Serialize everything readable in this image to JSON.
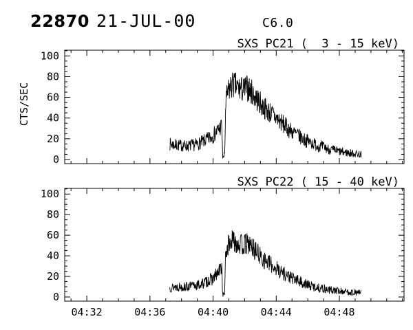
{
  "header": {
    "sequence_number": "22870",
    "date": "21-JUL-00",
    "flare_class": "C6.0"
  },
  "colors": {
    "foreground": "#000000",
    "background": "#ffffff"
  },
  "chart_data": [
    {
      "type": "line",
      "title": "SXS PC21 (  3 - 15 keV)",
      "ylabel": "CTS/SEC",
      "show_x_tick_labels": false,
      "xlim_minutes_after_0400": [
        30.6,
        52.1
      ],
      "ylim": [
        -4,
        105.5
      ],
      "yticks_major": [
        0,
        20,
        40,
        60,
        80,
        100
      ],
      "ytick_minor_step": 5,
      "xticks_major": [
        {
          "minutes": 32,
          "label": "04:32"
        },
        {
          "minutes": 36,
          "label": "04:36"
        },
        {
          "minutes": 40,
          "label": "04:40"
        },
        {
          "minutes": 44,
          "label": "04:44"
        },
        {
          "minutes": 48,
          "label": "04:48"
        }
      ],
      "xtick_minor_step_minutes": 1,
      "grid": false,
      "legend": "none",
      "series": {
        "name": "SXS PC21 3-15 keV counts",
        "units": "CTS/SEC",
        "noise_amplitude": 1.6,
        "seed": 7,
        "sample_step_minutes": 0.02,
        "keypoints_minutes_vs_cts": [
          [
            37.25,
            15
          ],
          [
            37.6,
            14
          ],
          [
            38.0,
            13.5
          ],
          [
            38.4,
            13
          ],
          [
            38.8,
            14
          ],
          [
            39.2,
            16
          ],
          [
            39.6,
            19
          ],
          [
            40.0,
            23
          ],
          [
            40.3,
            28
          ],
          [
            40.5,
            32
          ],
          [
            40.56,
            33
          ],
          [
            40.6,
            3
          ],
          [
            40.68,
            2
          ],
          [
            40.74,
            6
          ],
          [
            40.8,
            55
          ],
          [
            40.95,
            65
          ],
          [
            41.1,
            70
          ],
          [
            41.3,
            72
          ],
          [
            41.6,
            69
          ],
          [
            41.9,
            67
          ],
          [
            42.2,
            69
          ],
          [
            42.5,
            64
          ],
          [
            42.8,
            58
          ],
          [
            43.1,
            52
          ],
          [
            43.4,
            48
          ],
          [
            43.7,
            44
          ],
          [
            44.0,
            40
          ],
          [
            44.3,
            36
          ],
          [
            44.6,
            32
          ],
          [
            44.9,
            28
          ],
          [
            45.2,
            25
          ],
          [
            45.5,
            22
          ],
          [
            45.8,
            19
          ],
          [
            46.1,
            17
          ],
          [
            46.4,
            15
          ],
          [
            46.7,
            13
          ],
          [
            47.0,
            12
          ],
          [
            47.3,
            10
          ],
          [
            47.6,
            9
          ],
          [
            47.9,
            8
          ],
          [
            48.2,
            7
          ],
          [
            48.5,
            6.5
          ],
          [
            48.8,
            6
          ],
          [
            49.1,
            5.5
          ],
          [
            49.4,
            5
          ]
        ]
      }
    },
    {
      "type": "line",
      "title": "SXS PC22 ( 15 - 40 keV)",
      "ylabel": null,
      "show_x_tick_labels": true,
      "xlim_minutes_after_0400": [
        30.6,
        52.1
      ],
      "ylim": [
        -4,
        105.5
      ],
      "yticks_major": [
        0,
        20,
        40,
        60,
        80,
        100
      ],
      "ytick_minor_step": 5,
      "xticks_major": [
        {
          "minutes": 32,
          "label": "04:32"
        },
        {
          "minutes": 36,
          "label": "04:36"
        },
        {
          "minutes": 40,
          "label": "04:40"
        },
        {
          "minutes": 44,
          "label": "04:44"
        },
        {
          "minutes": 48,
          "label": "04:48"
        }
      ],
      "xtick_minor_step_minutes": 1,
      "grid": false,
      "legend": "none",
      "series": {
        "name": "SXS PC22 15-40 keV counts",
        "units": "CTS/SEC",
        "noise_amplitude": 1.5,
        "seed": 13,
        "sample_step_minutes": 0.02,
        "keypoints_minutes_vs_cts": [
          [
            37.25,
            9
          ],
          [
            37.6,
            10
          ],
          [
            38.0,
            10
          ],
          [
            38.4,
            10
          ],
          [
            38.8,
            11
          ],
          [
            39.2,
            12
          ],
          [
            39.6,
            15
          ],
          [
            40.0,
            18
          ],
          [
            40.3,
            23
          ],
          [
            40.5,
            28
          ],
          [
            40.56,
            30
          ],
          [
            40.6,
            3
          ],
          [
            40.68,
            2
          ],
          [
            40.74,
            5
          ],
          [
            40.8,
            42
          ],
          [
            40.95,
            50
          ],
          [
            41.1,
            53
          ],
          [
            41.3,
            55
          ],
          [
            41.6,
            52
          ],
          [
            41.9,
            50
          ],
          [
            42.2,
            52
          ],
          [
            42.5,
            48
          ],
          [
            42.8,
            43
          ],
          [
            43.1,
            38
          ],
          [
            43.4,
            34
          ],
          [
            43.7,
            31
          ],
          [
            44.0,
            28
          ],
          [
            44.3,
            25
          ],
          [
            44.6,
            22
          ],
          [
            44.9,
            19
          ],
          [
            45.2,
            17
          ],
          [
            45.5,
            15
          ],
          [
            45.8,
            13
          ],
          [
            46.1,
            11
          ],
          [
            46.4,
            10
          ],
          [
            46.7,
            9
          ],
          [
            47.0,
            8
          ],
          [
            47.3,
            7
          ],
          [
            47.6,
            6.5
          ],
          [
            47.9,
            6
          ],
          [
            48.2,
            5.5
          ],
          [
            48.5,
            5
          ],
          [
            48.8,
            4.5
          ],
          [
            49.1,
            4.5
          ],
          [
            49.4,
            4
          ]
        ]
      }
    }
  ]
}
